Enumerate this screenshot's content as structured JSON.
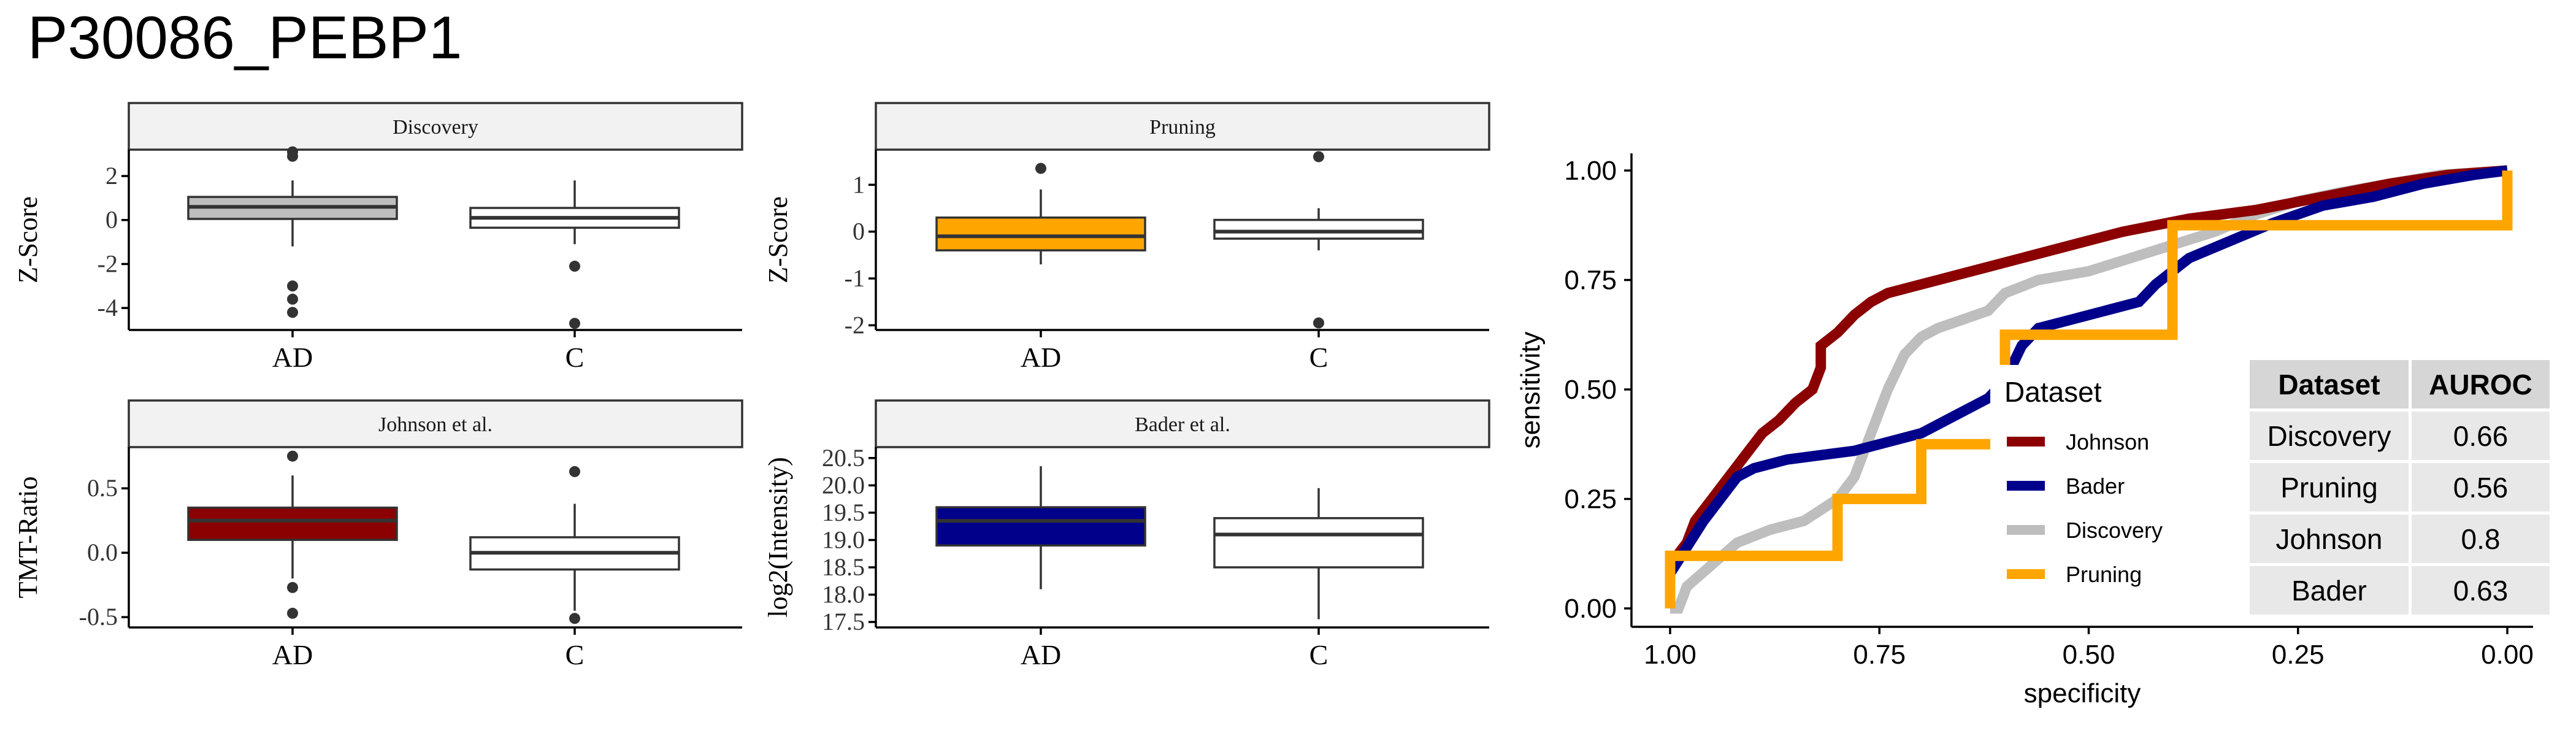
{
  "title": "P30086_PEBP1",
  "colors": {
    "johnson": "#8b0000",
    "bader": "#00008b",
    "discovery": "#bebebe",
    "pruning": "#ffa500",
    "strip_bg": "#f2f2f2"
  },
  "chart_data": [
    {
      "type": "box",
      "facet": "Discovery",
      "ylabel": "Z-Score",
      "categories": [
        "AD",
        "C"
      ],
      "yticks": [
        2,
        0,
        -2,
        -4
      ],
      "ytick_labels": [
        "2",
        "0",
        "-2",
        "-4"
      ],
      "ylim": [
        -5.0,
        3.2
      ],
      "fill": [
        "#bebebe",
        "#ffffff"
      ],
      "boxes": [
        {
          "q1": 0.05,
          "median": 0.6,
          "q3": 1.05,
          "whisker_low": -1.2,
          "whisker_high": 1.8,
          "outliers": [
            3.1,
            2.9,
            -3.0,
            -3.6,
            -4.2
          ]
        },
        {
          "q1": -0.35,
          "median": 0.1,
          "q3": 0.55,
          "whisker_low": -1.1,
          "whisker_high": 1.8,
          "outliers": [
            -2.1,
            -4.7
          ]
        }
      ]
    },
    {
      "type": "box",
      "facet": "Pruning",
      "ylabel": "Z-Score",
      "categories": [
        "AD",
        "C"
      ],
      "yticks": [
        1,
        0,
        -1,
        -2
      ],
      "ytick_labels": [
        "1",
        "0",
        "-1",
        "-2"
      ],
      "ylim": [
        -2.1,
        1.75
      ],
      "fill": [
        "#ffa500",
        "#ffffff"
      ],
      "boxes": [
        {
          "q1": -0.4,
          "median": -0.1,
          "q3": 0.3,
          "whisker_low": -0.7,
          "whisker_high": 0.9,
          "outliers": [
            1.35
          ]
        },
        {
          "q1": -0.15,
          "median": 0.0,
          "q3": 0.25,
          "whisker_low": -0.4,
          "whisker_high": 0.5,
          "outliers": [
            1.6,
            -1.95
          ]
        }
      ]
    },
    {
      "type": "box",
      "facet": "Johnson et al.",
      "ylabel": "TMT-Ratio",
      "categories": [
        "AD",
        "C"
      ],
      "yticks": [
        0.5,
        0.0,
        -0.5
      ],
      "ytick_labels": [
        "0.5",
        "0.0",
        "-0.5"
      ],
      "ylim": [
        -0.58,
        0.82
      ],
      "fill": [
        "#8b0000",
        "#ffffff"
      ],
      "boxes": [
        {
          "q1": 0.1,
          "median": 0.25,
          "q3": 0.35,
          "whisker_low": -0.2,
          "whisker_high": 0.6,
          "outliers": [
            0.75,
            -0.27,
            -0.47
          ]
        },
        {
          "q1": -0.13,
          "median": 0.0,
          "q3": 0.12,
          "whisker_low": -0.45,
          "whisker_high": 0.38,
          "outliers": [
            0.63,
            -0.51
          ]
        }
      ]
    },
    {
      "type": "box",
      "facet": "Bader et al.",
      "ylabel": "log2(Intensity)",
      "categories": [
        "AD",
        "C"
      ],
      "yticks": [
        20.5,
        20.0,
        19.5,
        19.0,
        18.5,
        18.0,
        17.5
      ],
      "ytick_labels": [
        "20.5",
        "20.0",
        "19.5",
        "19.0",
        "18.5",
        "18.0",
        "17.5"
      ],
      "ylim": [
        17.4,
        20.7
      ],
      "fill": [
        "#00008b",
        "#ffffff"
      ],
      "boxes": [
        {
          "q1": 18.9,
          "median": 19.35,
          "q3": 19.6,
          "whisker_low": 18.1,
          "whisker_high": 20.35,
          "outliers": []
        },
        {
          "q1": 18.5,
          "median": 19.1,
          "q3": 19.4,
          "whisker_low": 17.55,
          "whisker_high": 19.95,
          "outliers": []
        }
      ]
    },
    {
      "type": "line",
      "subtype": "roc",
      "xlabel": "specificity",
      "ylabel": "sensitivity",
      "xlim": [
        1.0,
        0.0
      ],
      "ylim": [
        0.0,
        1.0
      ],
      "xticks": [
        1.0,
        0.75,
        0.5,
        0.25,
        0.0
      ],
      "xtick_labels": [
        "1.00",
        "0.75",
        "0.50",
        "0.25",
        "0.00"
      ],
      "yticks": [
        0.0,
        0.25,
        0.5,
        0.75,
        1.0
      ],
      "ytick_labels": [
        "0.00",
        "0.25",
        "0.50",
        "0.75",
        "1.00"
      ],
      "legend": {
        "title": "Dataset",
        "entries": [
          "Johnson",
          "Bader",
          "Discovery",
          "Pruning"
        ]
      },
      "series": [
        {
          "name": "Johnson",
          "color": "#8b0000",
          "points": [
            [
              1.0,
              0.0
            ],
            [
              1.0,
              0.1
            ],
            [
              0.98,
              0.15
            ],
            [
              0.97,
              0.2
            ],
            [
              0.95,
              0.25
            ],
            [
              0.93,
              0.3
            ],
            [
              0.91,
              0.35
            ],
            [
              0.89,
              0.4
            ],
            [
              0.87,
              0.43
            ],
            [
              0.85,
              0.47
            ],
            [
              0.83,
              0.5
            ],
            [
              0.82,
              0.55
            ],
            [
              0.82,
              0.6
            ],
            [
              0.8,
              0.63
            ],
            [
              0.78,
              0.67
            ],
            [
              0.76,
              0.7
            ],
            [
              0.74,
              0.72
            ],
            [
              0.7,
              0.74
            ],
            [
              0.66,
              0.76
            ],
            [
              0.62,
              0.78
            ],
            [
              0.58,
              0.8
            ],
            [
              0.52,
              0.83
            ],
            [
              0.46,
              0.86
            ],
            [
              0.38,
              0.89
            ],
            [
              0.3,
              0.91
            ],
            [
              0.22,
              0.94
            ],
            [
              0.14,
              0.97
            ],
            [
              0.07,
              0.99
            ],
            [
              0.0,
              1.0
            ]
          ]
        },
        {
          "name": "Bader",
          "color": "#00008b",
          "points": [
            [
              1.0,
              0.0
            ],
            [
              1.0,
              0.08
            ],
            [
              0.98,
              0.14
            ],
            [
              0.96,
              0.2
            ],
            [
              0.94,
              0.25
            ],
            [
              0.92,
              0.3
            ],
            [
              0.9,
              0.32
            ],
            [
              0.86,
              0.34
            ],
            [
              0.82,
              0.35
            ],
            [
              0.78,
              0.36
            ],
            [
              0.74,
              0.38
            ],
            [
              0.7,
              0.4
            ],
            [
              0.66,
              0.44
            ],
            [
              0.62,
              0.48
            ],
            [
              0.6,
              0.52
            ],
            [
              0.58,
              0.6
            ],
            [
              0.56,
              0.64
            ],
            [
              0.52,
              0.66
            ],
            [
              0.48,
              0.68
            ],
            [
              0.44,
              0.7
            ],
            [
              0.42,
              0.74
            ],
            [
              0.38,
              0.8
            ],
            [
              0.33,
              0.84
            ],
            [
              0.28,
              0.88
            ],
            [
              0.22,
              0.92
            ],
            [
              0.16,
              0.94
            ],
            [
              0.1,
              0.97
            ],
            [
              0.04,
              0.99
            ],
            [
              0.0,
              1.0
            ]
          ]
        },
        {
          "name": "Discovery",
          "color": "#bebebe",
          "points": [
            [
              1.0,
              0.0
            ],
            [
              0.99,
              0.0
            ],
            [
              0.98,
              0.05
            ],
            [
              0.95,
              0.1
            ],
            [
              0.92,
              0.15
            ],
            [
              0.88,
              0.18
            ],
            [
              0.84,
              0.2
            ],
            [
              0.8,
              0.25
            ],
            [
              0.78,
              0.3
            ],
            [
              0.76,
              0.4
            ],
            [
              0.74,
              0.5
            ],
            [
              0.72,
              0.58
            ],
            [
              0.7,
              0.62
            ],
            [
              0.68,
              0.64
            ],
            [
              0.65,
              0.66
            ],
            [
              0.62,
              0.68
            ],
            [
              0.6,
              0.72
            ],
            [
              0.56,
              0.75
            ],
            [
              0.5,
              0.77
            ],
            [
              0.45,
              0.8
            ],
            [
              0.4,
              0.83
            ],
            [
              0.35,
              0.86
            ],
            [
              0.3,
              0.9
            ],
            [
              0.25,
              0.93
            ],
            [
              0.2,
              0.95
            ],
            [
              0.14,
              0.97
            ],
            [
              0.08,
              0.99
            ],
            [
              0.0,
              1.0
            ]
          ]
        },
        {
          "name": "Pruning",
          "color": "#ffa500",
          "points": [
            [
              1.0,
              0.0
            ],
            [
              1.0,
              0.12
            ],
            [
              0.8,
              0.12
            ],
            [
              0.8,
              0.25
            ],
            [
              0.7,
              0.25
            ],
            [
              0.7,
              0.375
            ],
            [
              0.6,
              0.375
            ],
            [
              0.6,
              0.625
            ],
            [
              0.4,
              0.625
            ],
            [
              0.4,
              0.875
            ],
            [
              0.0,
              0.875
            ],
            [
              0.0,
              1.0
            ]
          ]
        }
      ]
    },
    {
      "type": "table",
      "columns": [
        "Dataset",
        "AUROC"
      ],
      "rows": [
        [
          "Discovery",
          "0.66"
        ],
        [
          "Pruning",
          "0.56"
        ],
        [
          "Johnson",
          "0.8"
        ],
        [
          "Bader",
          "0.63"
        ]
      ]
    }
  ]
}
